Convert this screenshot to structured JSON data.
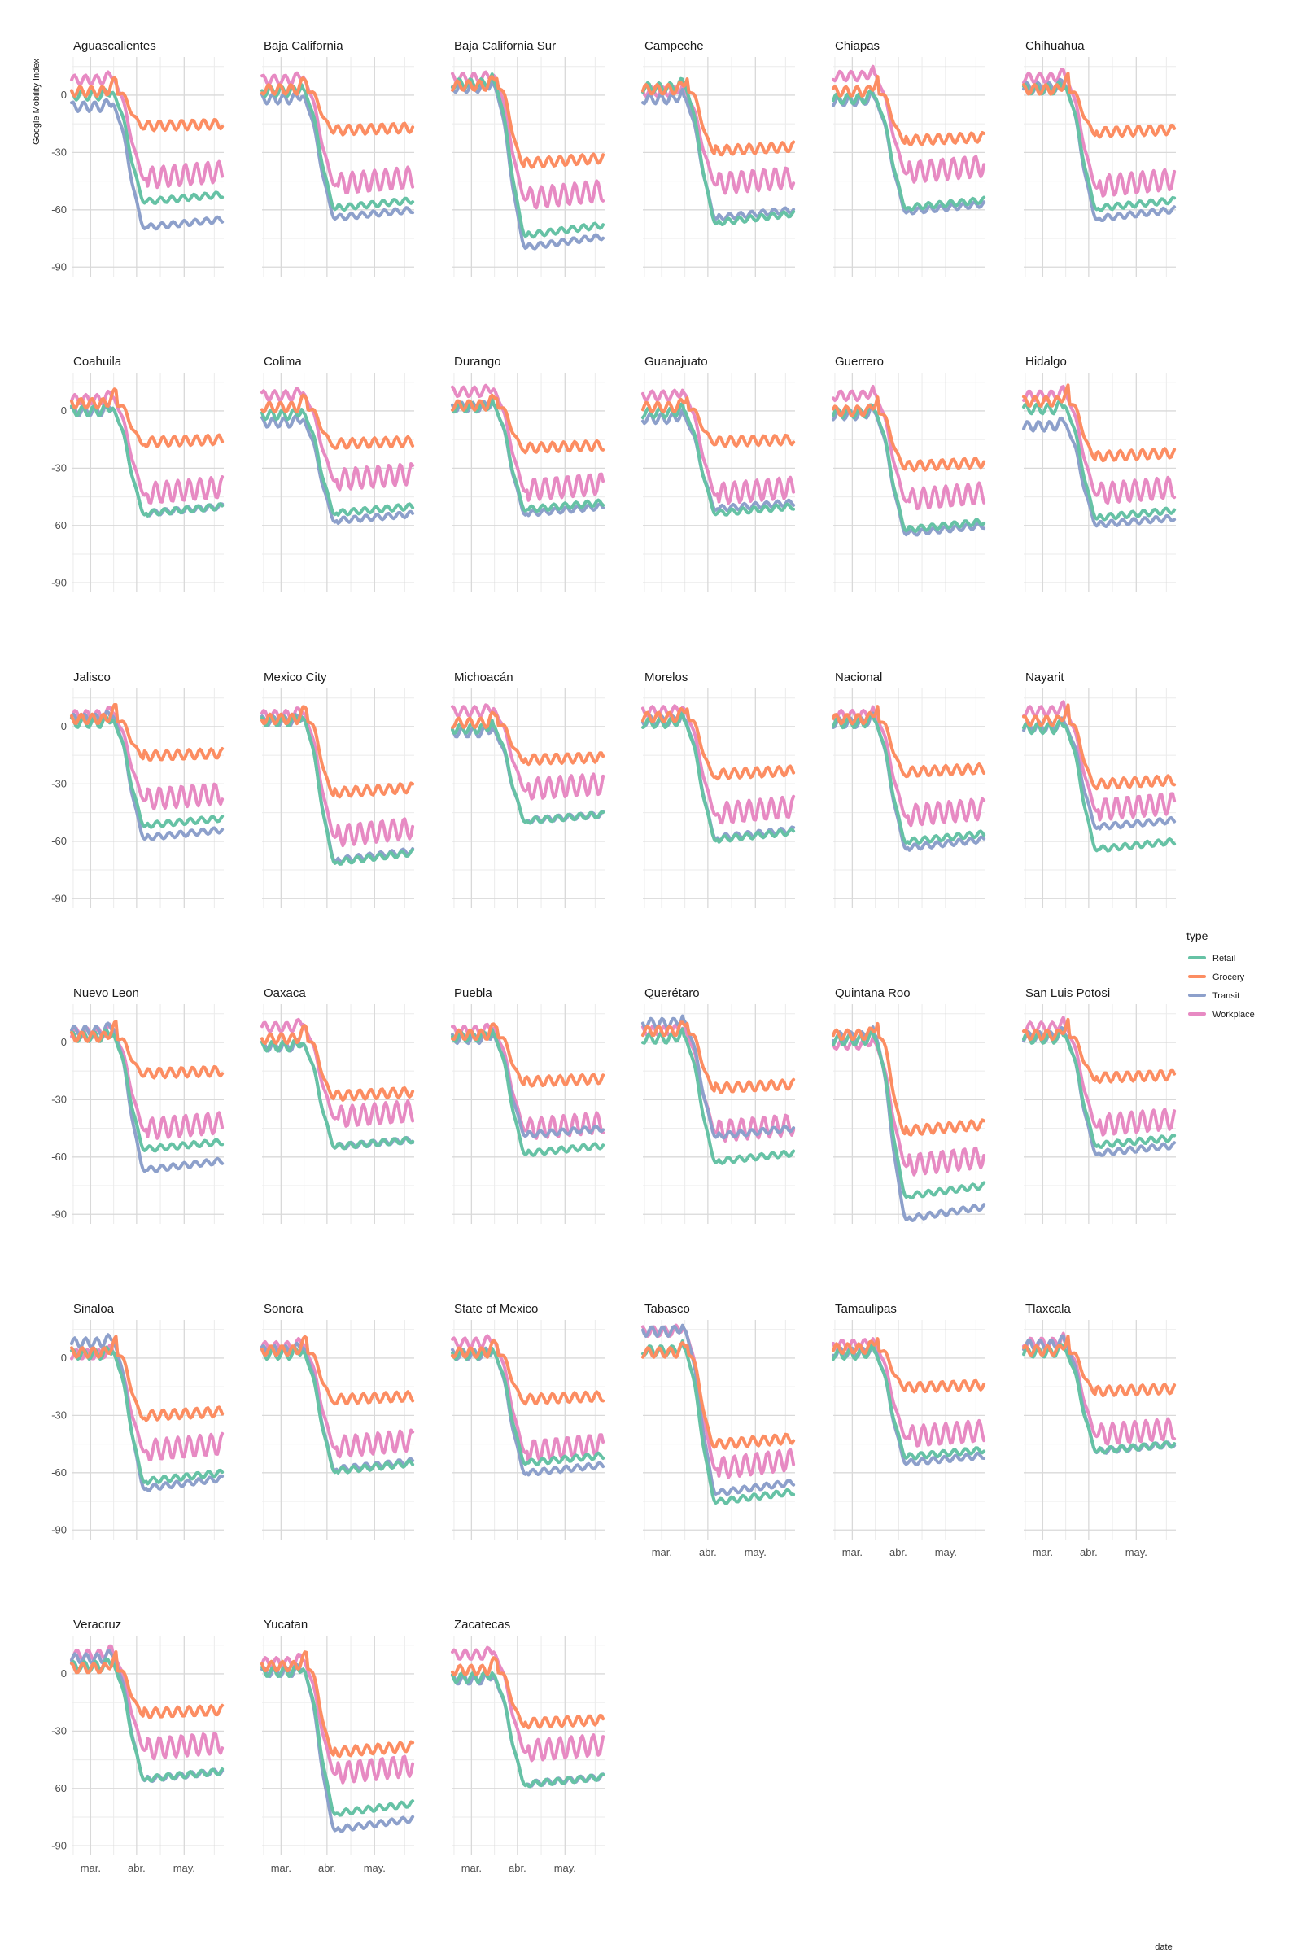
{
  "chart_data": {
    "type": "line",
    "ylabel": "Google Mobility Index",
    "xlabel": "date",
    "ylim": [
      -95,
      20
    ],
    "yticks": [
      0,
      -30,
      -60,
      -90
    ],
    "ytick_labels": [
      "0",
      "-30",
      "-60",
      "-90"
    ],
    "xlim": [
      0,
      96
    ],
    "xticks": [
      12,
      41,
      71
    ],
    "xtick_labels": [
      "mar.",
      "abr.",
      "may."
    ],
    "legend": {
      "title": "type",
      "position": "right"
    },
    "colors": {
      "Retail": "#66c2a5",
      "Grocery": "#fc8d62",
      "Transit": "#8da0cb",
      "Workplace": "#e78ac3"
    },
    "series_order": [
      "Workplace",
      "Transit",
      "Retail",
      "Grocery"
    ],
    "legend_order": [
      "Retail",
      "Grocery",
      "Transit",
      "Workplace"
    ],
    "x_format": "days since 2020-02-15 (daily points, x = 0..95)",
    "panels": [
      {
        "name": "Aguascalientes",
        "pre": {
          "Retail": 0,
          "Grocery": 2,
          "Transit": -6,
          "Workplace": 8
        },
        "end": {
          "Retail": -52,
          "Grocery": -15,
          "Transit": -65,
          "Workplace": -40
        }
      },
      {
        "name": "Baja California",
        "pre": {
          "Retail": 2,
          "Grocery": 3,
          "Transit": -2,
          "Workplace": 8
        },
        "end": {
          "Retail": -55,
          "Grocery": -17,
          "Transit": -60,
          "Workplace": -43
        }
      },
      {
        "name": "Baja California Sur",
        "pre": {
          "Retail": 6,
          "Grocery": 5,
          "Transit": 4,
          "Workplace": 9
        },
        "end": {
          "Retail": -68,
          "Grocery": -33,
          "Transit": -74,
          "Workplace": -50
        }
      },
      {
        "name": "Campeche",
        "pre": {
          "Retail": 4,
          "Grocery": 3,
          "Transit": -2,
          "Workplace": 2
        },
        "end": {
          "Retail": -62,
          "Grocery": -27,
          "Transit": -60,
          "Workplace": -43
        }
      },
      {
        "name": "Chiapas",
        "pre": {
          "Retail": -2,
          "Grocery": 2,
          "Transit": -3,
          "Workplace": 10
        },
        "end": {
          "Retail": -55,
          "Grocery": -22,
          "Transit": -57,
          "Workplace": -37
        }
      },
      {
        "name": "Chihuahua",
        "pre": {
          "Retail": 3,
          "Grocery": 3,
          "Transit": 4,
          "Workplace": 9
        },
        "end": {
          "Retail": -55,
          "Grocery": -18,
          "Transit": -60,
          "Workplace": -44
        }
      },
      {
        "name": "Coahuila",
        "pre": {
          "Retail": 0,
          "Grocery": 4,
          "Transit": 0,
          "Workplace": 6
        },
        "end": {
          "Retail": -50,
          "Grocery": -15,
          "Transit": -50,
          "Workplace": -40
        }
      },
      {
        "name": "Colima",
        "pre": {
          "Retail": -2,
          "Grocery": 2,
          "Transit": -6,
          "Workplace": 8
        },
        "end": {
          "Retail": -50,
          "Grocery": -16,
          "Transit": -54,
          "Workplace": -33
        }
      },
      {
        "name": "Durango",
        "pre": {
          "Retail": 2,
          "Grocery": 3,
          "Transit": 2,
          "Workplace": 10
        },
        "end": {
          "Retail": -48,
          "Grocery": -18,
          "Transit": -50,
          "Workplace": -38
        }
      },
      {
        "name": "Guanajuato",
        "pre": {
          "Retail": -1,
          "Grocery": 2,
          "Transit": -4,
          "Workplace": 8
        },
        "end": {
          "Retail": -50,
          "Grocery": -15,
          "Transit": -48,
          "Workplace": -40
        }
      },
      {
        "name": "Guerrero",
        "pre": {
          "Retail": -1,
          "Grocery": 0,
          "Transit": -2,
          "Workplace": 8
        },
        "end": {
          "Retail": -58,
          "Grocery": -27,
          "Transit": -60,
          "Workplace": -43
        }
      },
      {
        "name": "Hidalgo",
        "pre": {
          "Retail": 1,
          "Grocery": 5,
          "Transit": -8,
          "Workplace": 8
        },
        "end": {
          "Retail": -52,
          "Grocery": -22,
          "Transit": -56,
          "Workplace": -40
        }
      },
      {
        "name": "Jalisco",
        "pre": {
          "Retail": 2,
          "Grocery": 4,
          "Transit": 4,
          "Workplace": 6
        },
        "end": {
          "Retail": -48,
          "Grocery": -14,
          "Transit": -54,
          "Workplace": -35
        }
      },
      {
        "name": "Mexico City",
        "pre": {
          "Retail": 3,
          "Grocery": 4,
          "Transit": 3,
          "Workplace": 6
        },
        "end": {
          "Retail": -66,
          "Grocery": -32,
          "Transit": -65,
          "Workplace": -53
        }
      },
      {
        "name": "Michoacán",
        "pre": {
          "Retail": -1,
          "Grocery": 2,
          "Transit": -3,
          "Workplace": 8
        },
        "end": {
          "Retail": -46,
          "Grocery": -16,
          "Transit": -46,
          "Workplace": -30
        }
      },
      {
        "name": "Morelos",
        "pre": {
          "Retail": 2,
          "Grocery": 5,
          "Transit": 3,
          "Workplace": 8
        },
        "end": {
          "Retail": -55,
          "Grocery": -23,
          "Transit": -54,
          "Workplace": -42
        }
      },
      {
        "name": "Nacional",
        "pre": {
          "Retail": 2,
          "Grocery": 4,
          "Transit": 2,
          "Workplace": 6
        },
        "end": {
          "Retail": -56,
          "Grocery": -22,
          "Transit": -59,
          "Workplace": -43
        }
      },
      {
        "name": "Nayarit",
        "pre": {
          "Retail": -1,
          "Grocery": 3,
          "Transit": 0,
          "Workplace": 8
        },
        "end": {
          "Retail": -60,
          "Grocery": -28,
          "Transit": -49,
          "Workplace": -40
        }
      },
      {
        "name": "Nuevo Leon",
        "pre": {
          "Retail": 3,
          "Grocery": 3,
          "Transit": 6,
          "Workplace": 5
        },
        "end": {
          "Retail": -52,
          "Grocery": -15,
          "Transit": -62,
          "Workplace": -42
        }
      },
      {
        "name": "Oaxaca",
        "pre": {
          "Retail": -2,
          "Grocery": 2,
          "Transit": -2,
          "Workplace": 8
        },
        "end": {
          "Retail": -51,
          "Grocery": -26,
          "Transit": -51,
          "Workplace": -36
        }
      },
      {
        "name": "Puebla",
        "pre": {
          "Retail": 3,
          "Grocery": 4,
          "Transit": 2,
          "Workplace": 6
        },
        "end": {
          "Retail": -54,
          "Grocery": -19,
          "Transit": -45,
          "Workplace": -42
        }
      },
      {
        "name": "Querétaro",
        "pre": {
          "Retail": 2,
          "Grocery": 6,
          "Transit": 10,
          "Workplace": 6
        },
        "end": {
          "Retail": -58,
          "Grocery": -22,
          "Transit": -45,
          "Workplace": -43
        }
      },
      {
        "name": "Quintana Roo",
        "pre": {
          "Retail": 1,
          "Grocery": 4,
          "Transit": 3,
          "Workplace": -1
        },
        "end": {
          "Retail": -75,
          "Grocery": -43,
          "Transit": -86,
          "Workplace": -60
        }
      },
      {
        "name": "San Luis Potosi",
        "pre": {
          "Retail": 2,
          "Grocery": 4,
          "Transit": 3,
          "Workplace": 8
        },
        "end": {
          "Retail": -50,
          "Grocery": -17,
          "Transit": -54,
          "Workplace": -40
        }
      },
      {
        "name": "Sinaloa",
        "pre": {
          "Retail": 2,
          "Grocery": 3,
          "Transit": 8,
          "Workplace": 2
        },
        "end": {
          "Retail": -60,
          "Grocery": -28,
          "Transit": -63,
          "Workplace": -45
        }
      },
      {
        "name": "Sonora",
        "pre": {
          "Retail": 2,
          "Grocery": 4,
          "Transit": 4,
          "Workplace": 6
        },
        "end": {
          "Retail": -55,
          "Grocery": -20,
          "Transit": -54,
          "Workplace": -43
        }
      },
      {
        "name": "State of Mexico",
        "pre": {
          "Retail": 2,
          "Grocery": 3,
          "Transit": 2,
          "Workplace": 8
        },
        "end": {
          "Retail": -51,
          "Grocery": -20,
          "Transit": -56,
          "Workplace": -45
        }
      },
      {
        "name": "Tabasco",
        "pre": {
          "Retail": 4,
          "Grocery": 3,
          "Transit": 14,
          "Workplace": 14
        },
        "end": {
          "Retail": -70,
          "Grocery": -42,
          "Transit": -65,
          "Workplace": -53
        }
      },
      {
        "name": "Tamaulipas",
        "pre": {
          "Retail": 2,
          "Grocery": 5,
          "Transit": 3,
          "Workplace": 7
        },
        "end": {
          "Retail": -48,
          "Grocery": -14,
          "Transit": -51,
          "Workplace": -38
        }
      },
      {
        "name": "Tlaxcala",
        "pre": {
          "Retail": 3,
          "Grocery": 4,
          "Transit": 7,
          "Workplace": 8
        },
        "end": {
          "Retail": -45,
          "Grocery": -16,
          "Transit": -45,
          "Workplace": -37
        }
      },
      {
        "name": "Veracruz",
        "pre": {
          "Retail": 4,
          "Grocery": 3,
          "Transit": 8,
          "Workplace": 10
        },
        "end": {
          "Retail": -51,
          "Grocery": -19,
          "Transit": -51,
          "Workplace": -36
        }
      },
      {
        "name": "Yucatan",
        "pre": {
          "Retail": 1,
          "Grocery": 4,
          "Transit": 1,
          "Workplace": 6
        },
        "end": {
          "Retail": -68,
          "Grocery": -38,
          "Transit": -76,
          "Workplace": -48
        }
      },
      {
        "name": "Zacatecas",
        "pre": {
          "Retail": -2,
          "Grocery": 2,
          "Transit": -3,
          "Workplace": 10
        },
        "end": {
          "Retail": -54,
          "Grocery": -24,
          "Transit": -54,
          "Workplace": -37
        }
      }
    ]
  }
}
